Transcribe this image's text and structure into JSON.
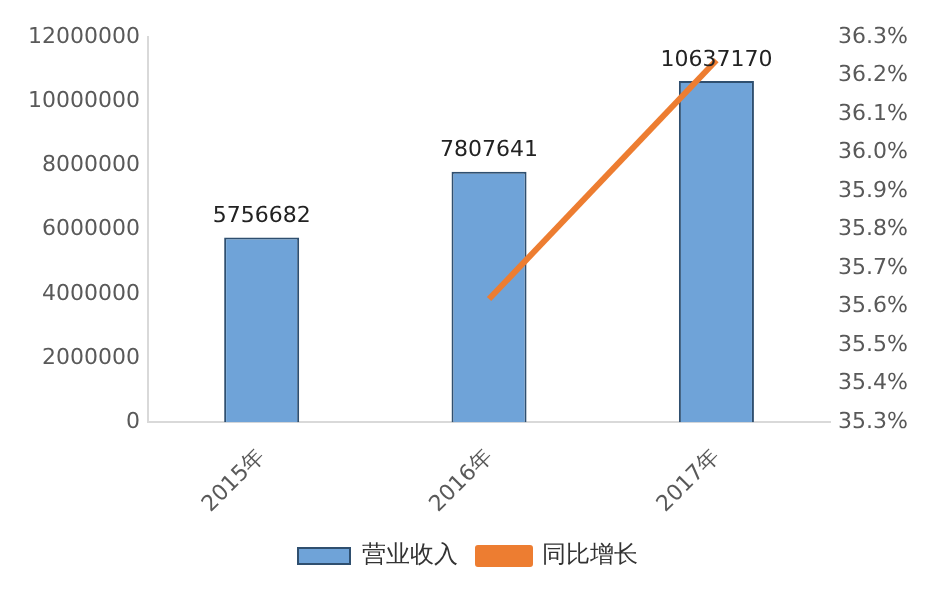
{
  "chart_data": {
    "type": "bar",
    "categories": [
      "2015年",
      "2016年",
      "2017年"
    ],
    "series": [
      {
        "name": "营业收入",
        "color": "#6fa3d8",
        "values": [
          5756682,
          7807641,
          10637170
        ],
        "value_labels": [
          "5756682",
          "7807641",
          "10637170"
        ]
      },
      {
        "name": "同比增长",
        "type": "line",
        "axis": "y2",
        "color": "#ed7d31",
        "values": [
          null,
          35.62,
          36.24
        ]
      }
    ],
    "ylim": [
      0,
      12000000
    ],
    "yticks": [
      0,
      2000000,
      4000000,
      6000000,
      8000000,
      10000000,
      12000000
    ],
    "y2lim": [
      35.3,
      36.3
    ],
    "y2ticks": [
      {
        "value": 35.3,
        "label": "35.3%"
      },
      {
        "value": 35.4,
        "label": "35.4%"
      },
      {
        "value": 35.5,
        "label": "35.5%"
      },
      {
        "value": 35.6,
        "label": "35.6%"
      },
      {
        "value": 35.7,
        "label": "35.7%"
      },
      {
        "value": 35.8,
        "label": "35.8%"
      },
      {
        "value": 35.9,
        "label": "35.9%"
      },
      {
        "value": 36.0,
        "label": "36.0%"
      },
      {
        "value": 36.1,
        "label": "36.1%"
      },
      {
        "value": 36.2,
        "label": "36.2%"
      },
      {
        "value": 36.3,
        "label": "36.3%"
      }
    ],
    "grid": false,
    "legend": "bottom",
    "marker": "none"
  }
}
